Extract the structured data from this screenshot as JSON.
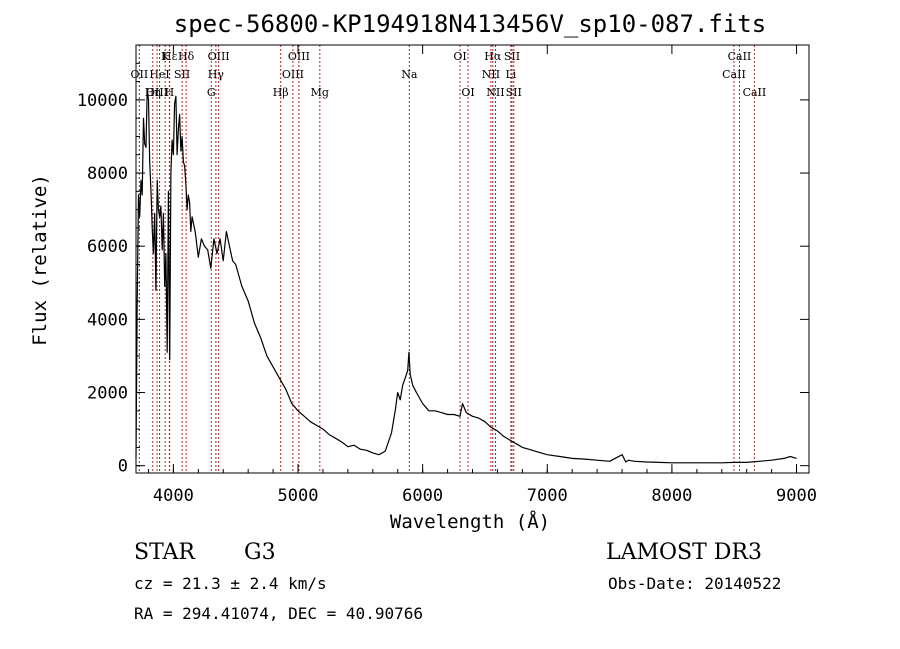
{
  "chart_data": {
    "type": "line",
    "title": "spec-56800-KP194918N413456V_sp10-087.fits",
    "xlabel": "Wavelength (Å)",
    "ylabel": "Flux (relative)",
    "xlim": [
      3700,
      9100
    ],
    "ylim": [
      -200,
      11500
    ],
    "x_ticks": [
      4000,
      5000,
      6000,
      7000,
      8000,
      9000
    ],
    "y_ticks": [
      0,
      2000,
      4000,
      6000,
      8000,
      10000
    ],
    "series": [
      {
        "name": "flux",
        "x": [
          3700,
          3710,
          3720,
          3730,
          3740,
          3750,
          3760,
          3770,
          3780,
          3790,
          3800,
          3810,
          3820,
          3830,
          3840,
          3850,
          3860,
          3870,
          3880,
          3890,
          3900,
          3910,
          3920,
          3930,
          3940,
          3950,
          3960,
          3970,
          3980,
          3990,
          4000,
          4010,
          4020,
          4030,
          4040,
          4050,
          4060,
          4070,
          4080,
          4090,
          4100,
          4110,
          4120,
          4130,
          4140,
          4150,
          4175,
          4200,
          4225,
          4250,
          4275,
          4300,
          4325,
          4350,
          4375,
          4400,
          4425,
          4450,
          4475,
          4500,
          4550,
          4600,
          4650,
          4700,
          4750,
          4800,
          4850,
          4900,
          4950,
          5000,
          5050,
          5100,
          5150,
          5200,
          5250,
          5300,
          5350,
          5400,
          5450,
          5500,
          5550,
          5600,
          5650,
          5700,
          5750,
          5780,
          5800,
          5820,
          5840,
          5860,
          5880,
          5890,
          5900,
          5920,
          5950,
          6000,
          6050,
          6100,
          6150,
          6200,
          6250,
          6300,
          6320,
          6350,
          6400,
          6450,
          6500,
          6550,
          6600,
          6650,
          6700,
          6750,
          6800,
          6850,
          6900,
          6950,
          7000,
          7100,
          7200,
          7300,
          7400,
          7500,
          7600,
          7630,
          7650,
          7700,
          7800,
          7900,
          8000,
          8100,
          8200,
          8300,
          8400,
          8500,
          8600,
          8700,
          8800,
          8900,
          8950,
          9000
        ],
        "values": [
          200,
          4500,
          7400,
          6800,
          7800,
          7400,
          9500,
          8800,
          8700,
          10300,
          10000,
          8300,
          7500,
          6500,
          5800,
          6900,
          4800,
          7800,
          7000,
          6800,
          7100,
          5900,
          6900,
          4900,
          5800,
          3100,
          7500,
          2900,
          8000,
          8900,
          8500,
          9900,
          10100,
          8500,
          9200,
          9600,
          8600,
          9000,
          8300,
          8200,
          7700,
          7000,
          7400,
          7200,
          6400,
          6800,
          6400,
          5700,
          6200,
          6000,
          5900,
          5400,
          6200,
          5800,
          6200,
          5600,
          6400,
          6000,
          5600,
          5500,
          4900,
          4500,
          3900,
          3500,
          3000,
          2700,
          2400,
          2100,
          1700,
          1500,
          1350,
          1200,
          1100,
          1000,
          850,
          750,
          650,
          520,
          560,
          450,
          420,
          350,
          300,
          400,
          900,
          1500,
          2000,
          1800,
          2200,
          2400,
          2600,
          3100,
          2500,
          2200,
          2000,
          1700,
          1500,
          1500,
          1450,
          1400,
          1400,
          1350,
          1700,
          1450,
          1350,
          1300,
          1200,
          1050,
          950,
          800,
          700,
          600,
          500,
          450,
          400,
          350,
          300,
          250,
          200,
          180,
          150,
          120,
          300,
          100,
          150,
          120,
          100,
          90,
          80,
          80,
          80,
          80,
          80,
          90,
          90,
          120,
          150,
          200,
          250,
          200
        ]
      }
    ],
    "lines": [
      {
        "name": "Hε",
        "x": 3970,
        "row": 0
      },
      {
        "name": "Hδ",
        "x": 4102,
        "row": 0
      },
      {
        "name": "OII",
        "x": 3727,
        "row": 1
      },
      {
        "name": "HeI",
        "x": 3889,
        "row": 1
      },
      {
        "name": "Hγ",
        "x": 4341,
        "row": 1
      },
      {
        "name": "OIII",
        "x": 4363,
        "row": 0
      },
      {
        "name": "OIII",
        "x": 4959,
        "row": 1
      },
      {
        "name": "OIII",
        "x": 5007,
        "row": 0
      },
      {
        "name": "OIII",
        "x": 3869,
        "row": 2
      },
      {
        "name": "Hη",
        "x": 3835,
        "row": 2
      },
      {
        "name": "K",
        "x": 3934,
        "row": 0
      },
      {
        "name": "SII",
        "x": 4070,
        "row": 1
      },
      {
        "name": "H",
        "x": 3968,
        "row": 2
      },
      {
        "name": "G",
        "x": 4304,
        "row": 2
      },
      {
        "name": "Hβ",
        "x": 4861,
        "row": 2
      },
      {
        "name": "Mg",
        "x": 5175,
        "row": 2
      },
      {
        "name": "Na",
        "x": 5893,
        "row": 1
      },
      {
        "name": "OI",
        "x": 6300,
        "row": 0
      },
      {
        "name": "OI",
        "x": 6364,
        "row": 2
      },
      {
        "name": "Hα",
        "x": 6563,
        "row": 0
      },
      {
        "name": "NII",
        "x": 6548,
        "row": 1
      },
      {
        "name": "NII",
        "x": 6584,
        "row": 2
      },
      {
        "name": "SII",
        "x": 6717,
        "row": 0
      },
      {
        "name": "Li",
        "x": 6708,
        "row": 1
      },
      {
        "name": "SII",
        "x": 6731,
        "row": 2
      },
      {
        "name": "CaII",
        "x": 8542,
        "row": 0
      },
      {
        "name": "CaII",
        "x": 8498,
        "row": 1
      },
      {
        "name": "CaII",
        "x": 8662,
        "row": 2
      }
    ]
  },
  "info": {
    "object_class": "STAR",
    "subclass": "G3",
    "survey": "LAMOST DR3",
    "cz": "cz = 21.3 ± 2.4 km/s",
    "obs_date": "Obs-Date: 20140522",
    "coords": "RA = 294.41074, DEC =  40.90766"
  }
}
